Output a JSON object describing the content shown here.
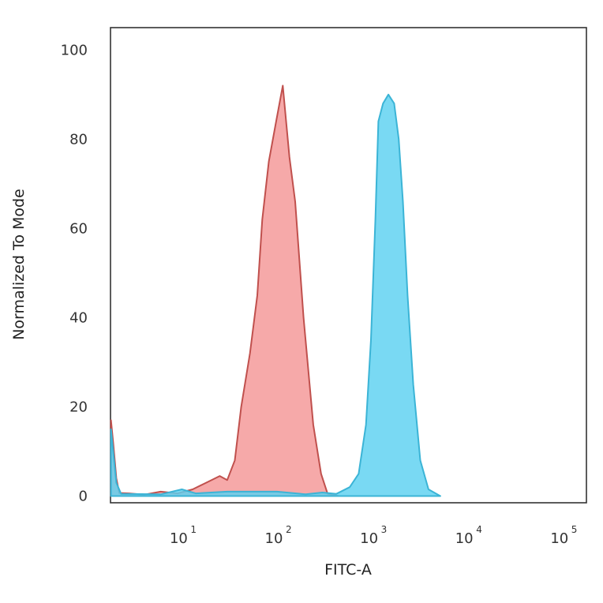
{
  "chart_data": {
    "type": "area",
    "title": "",
    "xlabel": "FITC-A",
    "ylabel": "Normalized To Mode",
    "x_scale": "log",
    "xlim": [
      1.78,
      178000.0
    ],
    "ylim": [
      -1.5,
      105
    ],
    "y_ticks": [
      0,
      20,
      40,
      60,
      80,
      100
    ],
    "x_ticks": [
      {
        "value": 10,
        "base": "10",
        "exp": "1"
      },
      {
        "value": 100,
        "base": "10",
        "exp": "2"
      },
      {
        "value": 1000,
        "base": "10",
        "exp": "3"
      },
      {
        "value": 10000,
        "base": "10",
        "exp": "4"
      },
      {
        "value": 100000,
        "base": "10",
        "exp": "5"
      }
    ],
    "grid": false,
    "series": [
      {
        "color": "#f59a9a",
        "stroke": "#c0504d",
        "points": [
          [
            1.8,
            17
          ],
          [
            1.9,
            12
          ],
          [
            2.05,
            4
          ],
          [
            2.2,
            0.7
          ],
          [
            2.8,
            0.6
          ],
          [
            4,
            0.3
          ],
          [
            6,
            1
          ],
          [
            9,
            0.6
          ],
          [
            13,
            1.5
          ],
          [
            18,
            3
          ],
          [
            25,
            4.5
          ],
          [
            30,
            3.6
          ],
          [
            36,
            8
          ],
          [
            42,
            20
          ],
          [
            52,
            32
          ],
          [
            62,
            45
          ],
          [
            70,
            62
          ],
          [
            82,
            75
          ],
          [
            98,
            84
          ],
          [
            115,
            92
          ],
          [
            135,
            76
          ],
          [
            155,
            66
          ],
          [
            190,
            40
          ],
          [
            240,
            16
          ],
          [
            290,
            5
          ],
          [
            340,
            0.5
          ],
          [
            450,
            0
          ]
        ]
      },
      {
        "color": "#5cd1f0",
        "stroke": "#3bb4d6",
        "points": [
          [
            1.8,
            15
          ],
          [
            1.9,
            10
          ],
          [
            2.05,
            3
          ],
          [
            2.3,
            0.5
          ],
          [
            6,
            0.4
          ],
          [
            10,
            1.5
          ],
          [
            14,
            0.6
          ],
          [
            30,
            1
          ],
          [
            100,
            1
          ],
          [
            200,
            0.4
          ],
          [
            300,
            0.8
          ],
          [
            420,
            0.5
          ],
          [
            580,
            2
          ],
          [
            720,
            5
          ],
          [
            860,
            16
          ],
          [
            970,
            35
          ],
          [
            1080,
            62
          ],
          [
            1160,
            84
          ],
          [
            1300,
            88
          ],
          [
            1480,
            90
          ],
          [
            1700,
            88
          ],
          [
            1900,
            80
          ],
          [
            2100,
            66
          ],
          [
            2350,
            45
          ],
          [
            2700,
            25
          ],
          [
            3200,
            8
          ],
          [
            3900,
            1.5
          ],
          [
            5200,
            0
          ]
        ]
      }
    ]
  }
}
